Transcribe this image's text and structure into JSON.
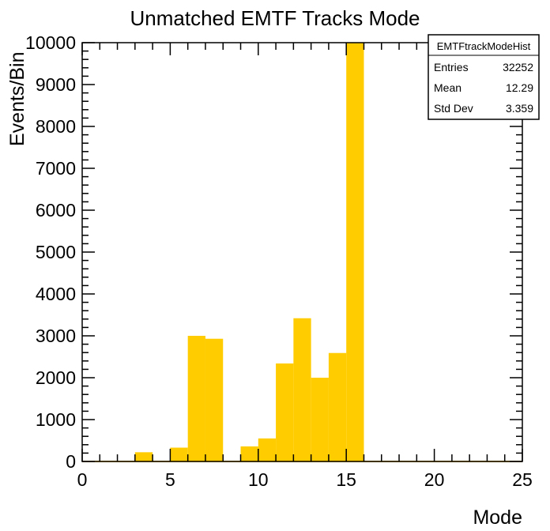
{
  "chart_data": {
    "type": "bar",
    "title": "Unmatched EMTF Tracks Mode",
    "xlabel": "Mode",
    "ylabel": "Events/Bin",
    "xlim": [
      0,
      25
    ],
    "ylim": [
      0,
      10000
    ],
    "bin_width": 1,
    "bar_color": "#ffcc00",
    "x_ticks": [
      "0",
      "5",
      "10",
      "15",
      "20",
      "25"
    ],
    "y_ticks": [
      "0",
      "1000",
      "2000",
      "3000",
      "4000",
      "5000",
      "6000",
      "7000",
      "8000",
      "9000",
      "10000"
    ],
    "bins": [
      {
        "low": 3,
        "value": 220
      },
      {
        "low": 4,
        "value": 0
      },
      {
        "low": 5,
        "value": 330
      },
      {
        "low": 6,
        "value": 3000
      },
      {
        "low": 7,
        "value": 2930
      },
      {
        "low": 9,
        "value": 360
      },
      {
        "low": 10,
        "value": 550
      },
      {
        "low": 11,
        "value": 2340
      },
      {
        "low": 12,
        "value": 3420
      },
      {
        "low": 13,
        "value": 2000
      },
      {
        "low": 14,
        "value": 2590
      },
      {
        "low": 15,
        "value": 10000
      }
    ],
    "stats_box": {
      "name": "EMTFtrackModeHist",
      "rows": [
        {
          "label": "Entries",
          "value": "32252"
        },
        {
          "label": "Mean",
          "value": "12.29"
        },
        {
          "label": "Std Dev",
          "value": "3.359"
        }
      ]
    }
  }
}
